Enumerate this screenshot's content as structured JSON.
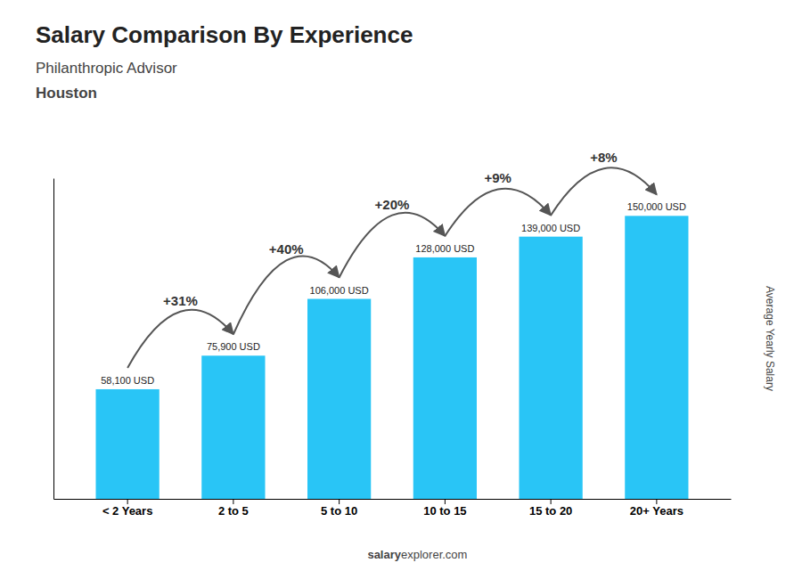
{
  "chart_data": {
    "type": "bar",
    "title": "Salary Comparison By Experience",
    "subtitle": "Philanthropic Advisor",
    "city": "Houston",
    "ylabel": "Average Yearly Salary",
    "categories": [
      "< 2 Years",
      "2 to 5",
      "5 to 10",
      "10 to 15",
      "15 to 20",
      "20+ Years"
    ],
    "values": [
      58100,
      75900,
      106000,
      128000,
      139000,
      150000
    ],
    "value_labels": [
      "58,100 USD",
      "75,900 USD",
      "106,000 USD",
      "128,000 USD",
      "139,000 USD",
      "150,000 USD"
    ],
    "data_labels": true,
    "color": "#29C5F6",
    "ylim": [
      0,
      170000
    ],
    "tick_labels": "x",
    "grid": false,
    "annotations": [
      {
        "text": "+31%",
        "from": "< 2 Years",
        "to": "2 to 5"
      },
      {
        "text": "+40%",
        "from": "2 to 5",
        "to": "5 to 10"
      },
      {
        "text": "+20%",
        "from": "5 to 10",
        "to": "10 to 15"
      },
      {
        "text": "+9%",
        "from": "10 to 15",
        "to": "15 to 20"
      },
      {
        "text": "+8%",
        "from": "15 to 20",
        "to": "20+ Years"
      }
    ],
    "footer": [
      "salary",
      "explorer.com"
    ]
  }
}
